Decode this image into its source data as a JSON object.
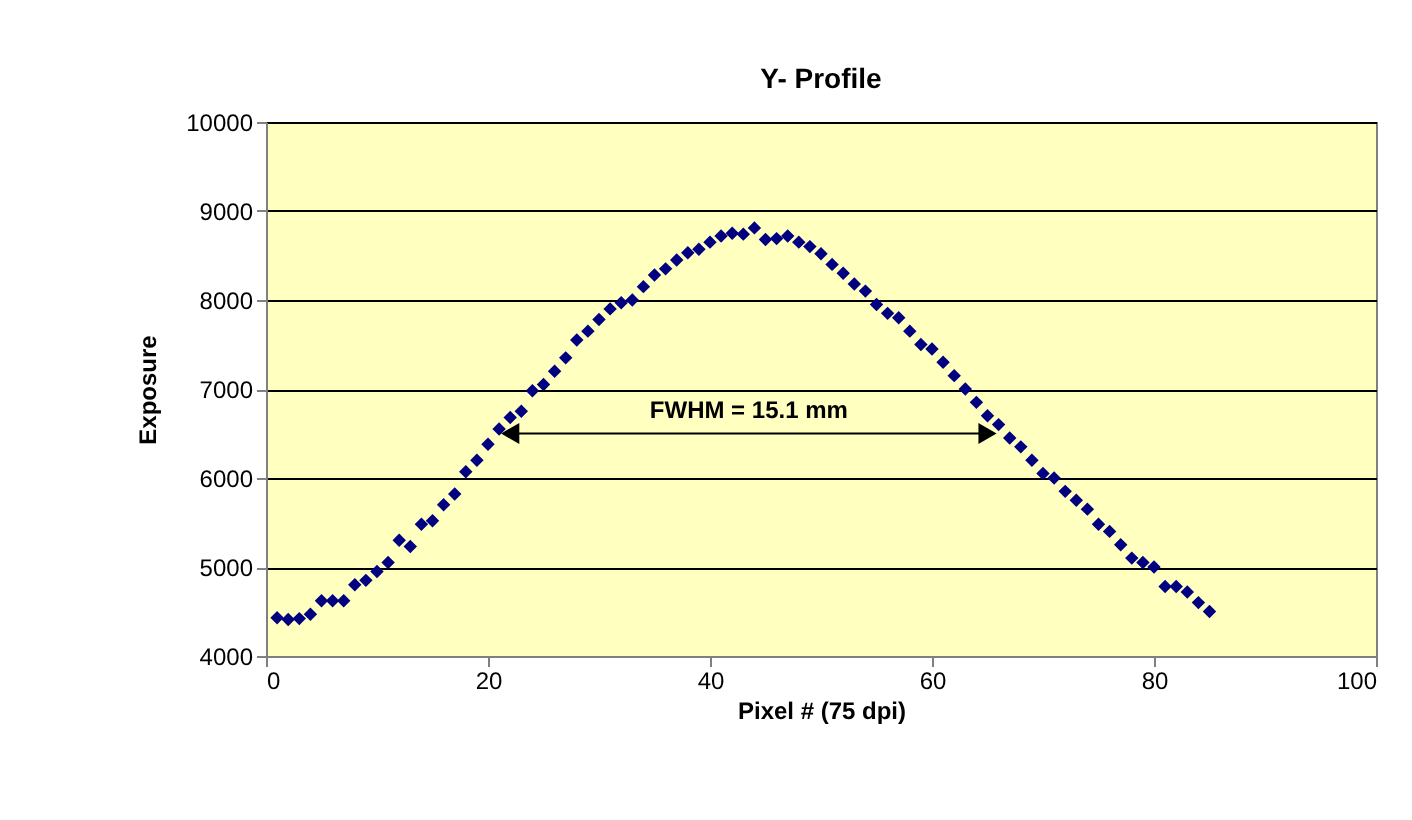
{
  "chart_data": {
    "type": "scatter",
    "title": "Y- Profile",
    "xlabel": "Pixel # (75 dpi)",
    "ylabel": "Exposure",
    "x": [
      1,
      2,
      3,
      4,
      5,
      6,
      7,
      8,
      9,
      10,
      11,
      12,
      13,
      14,
      15,
      16,
      17,
      18,
      19,
      20,
      21,
      22,
      23,
      24,
      25,
      26,
      27,
      28,
      29,
      30,
      31,
      32,
      33,
      34,
      35,
      36,
      37,
      38,
      39,
      40,
      41,
      42,
      43,
      44,
      45,
      46,
      47,
      48,
      49,
      50,
      51,
      52,
      53,
      54,
      55,
      56,
      57,
      58,
      59,
      60,
      61,
      62,
      63,
      64,
      65,
      66,
      67,
      68,
      69,
      70,
      71,
      72,
      73,
      74,
      75,
      76,
      77,
      78,
      79,
      80,
      81,
      82,
      83,
      84,
      85
    ],
    "series": [
      {
        "color": "#000080",
        "marker": "diamond",
        "values": [
          4430,
          4410,
          4420,
          4470,
          4620,
          4620,
          4620,
          4800,
          4850,
          4950,
          5050,
          5300,
          5230,
          5480,
          5520,
          5700,
          5820,
          6070,
          6200,
          6380,
          6550,
          6680,
          6750,
          6980,
          7050,
          7200,
          7350,
          7550,
          7650,
          7780,
          7900,
          7970,
          8000,
          8150,
          8280,
          8350,
          8450,
          8530,
          8570,
          8650,
          8720,
          8750,
          8740,
          8810,
          8680,
          8690,
          8720,
          8650,
          8600,
          8520,
          8400,
          8300,
          8180,
          8100,
          7950,
          7850,
          7800,
          7650,
          7500,
          7450,
          7300,
          7150,
          7000,
          6850,
          6700,
          6600,
          6450,
          6350,
          6200,
          6050,
          6000,
          5850,
          5750,
          5650,
          5480,
          5400,
          5250,
          5100,
          5050,
          5000,
          4780,
          4780,
          4720,
          4600,
          4500
        ]
      },
      {
        "type": "line",
        "color": "#000000",
        "marker": "triangle",
        "x": [
          22,
          65
        ],
        "values": [
          6500,
          6500
        ]
      }
    ],
    "annotations": [
      "FWHM = 15.1 mm"
    ],
    "xlim": [
      0,
      100
    ],
    "xticks": [
      0,
      20,
      40,
      60,
      80,
      100
    ],
    "ylim": [
      4000,
      10000
    ],
    "yticks": [
      4000,
      5000,
      6000,
      7000,
      8000,
      9000,
      10000
    ],
    "grid": "y"
  }
}
